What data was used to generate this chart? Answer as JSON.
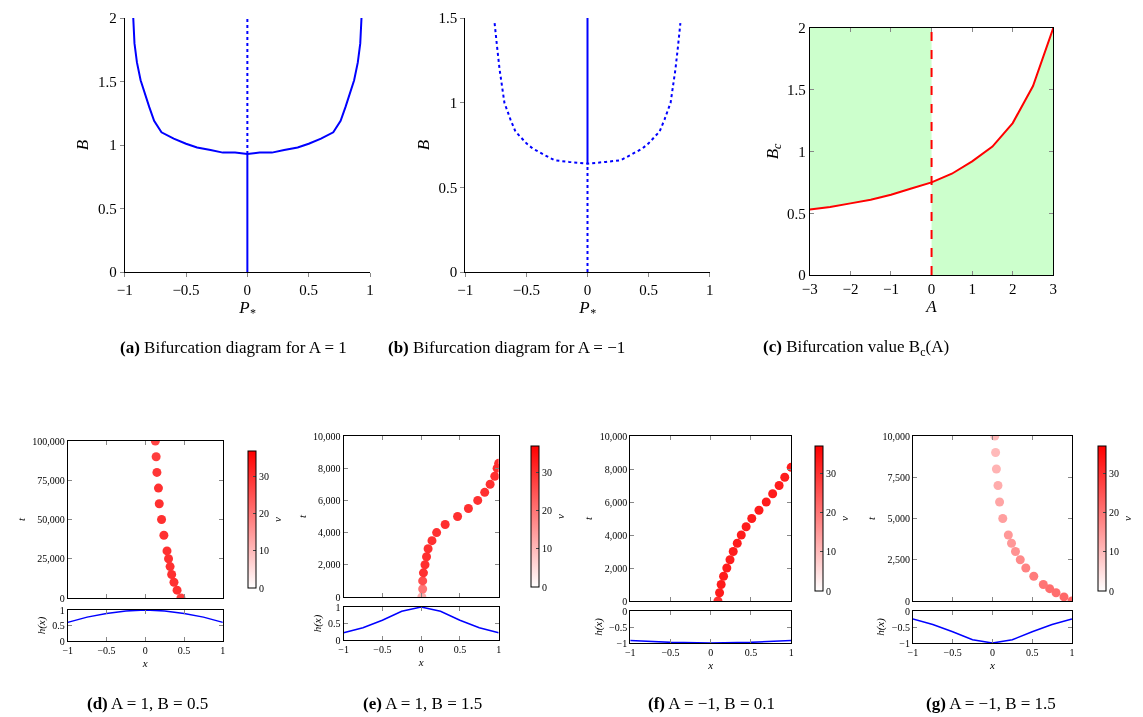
{
  "chart_data": [
    {
      "type": "line",
      "xlabel": "P$_{*}$",
      "ylabel": "B",
      "xlim": [
        -1,
        1
      ],
      "ylim": [
        0,
        2
      ],
      "xticks": [
        {
          "value": -1,
          "label": "−1"
        },
        {
          "value": -0.5,
          "label": "−0.5"
        },
        0,
        0.5,
        1
      ],
      "yticks": [
        0,
        0.5,
        1,
        1.5,
        2
      ],
      "annotations": [
        "(a) Bifurcation diagram for A = 1"
      ],
      "series": [
        {
          "color": "#0000ff",
          "line_style": "solid",
          "x": [
            -0.93,
            -0.92,
            -0.9,
            -0.87,
            -0.8,
            -0.76,
            -0.7,
            -0.6,
            -0.5,
            -0.41,
            -0.3,
            -0.2,
            -0.1,
            0,
            0.1,
            0.2,
            0.3,
            0.41,
            0.5,
            0.6,
            0.7,
            0.76,
            0.8,
            0.87,
            0.9,
            0.92,
            0.93
          ],
          "values": [
            2,
            1.8,
            1.65,
            1.51,
            1.3,
            1.19,
            1.1,
            1.05,
            1.01,
            0.98,
            0.96,
            0.94,
            0.94,
            0.93,
            0.94,
            0.94,
            0.96,
            0.98,
            1.01,
            1.05,
            1.1,
            1.19,
            1.3,
            1.51,
            1.65,
            1.8,
            2
          ]
        },
        {
          "color": "#0000ff",
          "line_style": "dotted",
          "x": [
            0,
            0
          ],
          "values": [
            0.93,
            2
          ]
        },
        {
          "color": "#0000ff",
          "line_style": "solid",
          "x": [
            0,
            0
          ],
          "values": [
            0,
            0.93
          ]
        }
      ]
    },
    {
      "type": "line",
      "xlabel": "P$_{*}$",
      "ylabel": "B",
      "xlim": [
        -1,
        1
      ],
      "ylim": [
        0,
        1.5
      ],
      "xticks": [
        {
          "value": -1,
          "label": "−1"
        },
        {
          "value": -0.5,
          "label": "−0.5"
        },
        0,
        0.5,
        1
      ],
      "yticks": [
        0,
        0.5,
        1,
        1.5
      ],
      "annotations": [
        "(b) Bifurcation diagram for A = −1"
      ],
      "series": [
        {
          "color": "#0000ff",
          "line_style": "dotted",
          "x": [
            -0.76,
            -0.74,
            -0.72,
            -0.68,
            -0.63,
            -0.59,
            -0.5,
            -0.45,
            -0.35,
            -0.27,
            -0.15,
            0,
            0.15,
            0.27,
            0.35,
            0.45,
            0.5,
            0.59,
            0.63,
            0.68,
            0.72,
            0.74,
            0.76
          ],
          "values": [
            1.47,
            1.33,
            1.2,
            1.0,
            0.9,
            0.83,
            0.76,
            0.73,
            0.69,
            0.66,
            0.65,
            0.64,
            0.65,
            0.66,
            0.69,
            0.73,
            0.76,
            0.83,
            0.9,
            1.0,
            1.2,
            1.33,
            1.47
          ]
        },
        {
          "color": "#0000ff",
          "line_style": "solid",
          "x": [
            0,
            0
          ],
          "values": [
            0.64,
            1.5
          ]
        },
        {
          "color": "#0000ff",
          "line_style": "dotted",
          "x": [
            0,
            0
          ],
          "values": [
            0,
            0.64
          ]
        }
      ]
    },
    {
      "type": "line",
      "xlabel": "A",
      "ylabel": "B$_{c}$",
      "xlim": [
        -3,
        3
      ],
      "ylim": [
        0,
        2
      ],
      "xticks": [
        {
          "value": -3,
          "label": "−3"
        },
        {
          "value": -2,
          "label": "−2"
        },
        {
          "value": -1,
          "label": "−1"
        },
        0,
        1,
        2,
        3
      ],
      "yticks": [
        0,
        0.5,
        1,
        1.5,
        2
      ],
      "annotations": [
        "(c) Bifurcation value B$_{c}$(A)"
      ],
      "ref_lines": [
        {
          "axis": "x",
          "value": 0,
          "color": "#ff0000",
          "line_style": "dashed"
        }
      ],
      "series": [
        {
          "type": "line",
          "color": "#ff0000",
          "line_style": "solid",
          "x": [
            -3,
            -2.5,
            -2,
            -1.5,
            -1,
            -0.5,
            0,
            0,
            0.5,
            1,
            1.5,
            2,
            2.5,
            3
          ],
          "values": [
            0.53,
            0.55,
            0.58,
            0.61,
            0.65,
            0.7,
            0.75,
            0.75,
            0.82,
            0.92,
            1.04,
            1.23,
            1.53,
            2
          ],
          "lower": [
            0.53,
            0.55,
            0.58,
            0.61,
            0.65,
            0.7,
            0.75,
            0,
            0,
            0,
            0,
            0,
            0,
            0
          ],
          "upper": [
            2,
            2,
            2,
            2,
            2,
            2,
            2,
            0.75,
            0.82,
            0.92,
            1.04,
            1.23,
            1.53,
            2
          ]
        }
      ]
    },
    {
      "type": "scatter",
      "marker": "circle",
      "ylabel": "t",
      "clabel": "v",
      "clim": [
        0,
        37
      ],
      "cticks": [
        0,
        10,
        20,
        30
      ],
      "tick_labels": "y",
      "xlim": [
        -1,
        1
      ],
      "ylim": [
        0,
        100000
      ],
      "xticks": [
        -1,
        -0.5,
        0,
        0.5,
        1
      ],
      "yticks": [
        0,
        {
          "value": 25000,
          "label": "25,000"
        },
        {
          "value": 50000,
          "label": "50,000"
        },
        {
          "value": 75000,
          "label": "75,000"
        },
        {
          "value": 100000,
          "label": "100,000"
        }
      ],
      "series": [
        {
          "x": [
            0.46,
            0.41,
            0.37,
            0.34,
            0.32,
            0.3,
            0.28,
            0.24,
            0.21,
            0.18,
            0.17,
            0.15,
            0.14,
            0.13
          ],
          "values": [
            0,
            5000,
            10000,
            15000,
            20000,
            25000,
            30000,
            40000,
            50000,
            60000,
            70000,
            80000,
            90000,
            100000
          ],
          "cvalues": [
            28,
            30,
            30,
            30,
            30,
            30,
            30,
            30,
            30,
            30,
            30,
            29,
            28,
            27
          ]
        }
      ]
    },
    {
      "type": "line",
      "xlabel": "x",
      "ylabel": "h(x)",
      "xlim": [
        -1,
        1
      ],
      "ylim": [
        0,
        1
      ],
      "xticks": [
        {
          "value": -1,
          "label": "−1"
        },
        {
          "value": -0.5,
          "label": "−0.5"
        },
        0,
        0.5,
        1
      ],
      "yticks": [
        0,
        0.5,
        1
      ],
      "annotations": [
        "(d) A = 1, B = 0.5"
      ],
      "series": [
        {
          "color": "#0000ff",
          "line_style": "solid",
          "x": [
            -1,
            -0.75,
            -0.5,
            -0.25,
            0,
            0.25,
            0.5,
            0.75,
            1
          ],
          "values": [
            0.6,
            0.77,
            0.89,
            0.97,
            1,
            0.97,
            0.89,
            0.77,
            0.6
          ]
        }
      ]
    },
    {
      "type": "scatter",
      "marker": "circle",
      "ylabel": "t",
      "clabel": "v",
      "clim": [
        0,
        37
      ],
      "cticks": [
        0,
        10,
        20,
        30
      ],
      "tick_labels": "y",
      "xlim": [
        -1,
        1
      ],
      "ylim": [
        0,
        10000
      ],
      "xticks": [
        -1,
        -0.5,
        0,
        0.5,
        1
      ],
      "yticks": [
        0,
        {
          "value": 2000,
          "label": "2,000"
        },
        {
          "value": 4000,
          "label": "4,000"
        },
        {
          "value": 6000,
          "label": "6,000"
        },
        {
          "value": 8000,
          "label": "8,000"
        },
        {
          "value": 10000,
          "label": "10,000"
        }
      ],
      "series": [
        {
          "x": [
            0.01,
            0.02,
            0.02,
            0.03,
            0.05,
            0.07,
            0.09,
            0.14,
            0.2,
            0.31,
            0.47,
            0.61,
            0.73,
            0.82,
            0.89,
            0.95,
            0.98,
            1.0
          ],
          "values": [
            0,
            500,
            1000,
            1500,
            2000,
            2500,
            3000,
            3500,
            4000,
            4500,
            5000,
            5500,
            6000,
            6500,
            7000,
            7500,
            8000,
            8300
          ],
          "cvalues": [
            12,
            20,
            26,
            30,
            30,
            30,
            30,
            30,
            30,
            30,
            30,
            30,
            30,
            30,
            30,
            30,
            30,
            30
          ]
        }
      ]
    },
    {
      "type": "line",
      "xlabel": "x",
      "ylabel": "h(x)",
      "xlim": [
        -1,
        1
      ],
      "ylim": [
        0,
        1
      ],
      "xticks": [
        {
          "value": -1,
          "label": "−1"
        },
        {
          "value": -0.5,
          "label": "−0.5"
        },
        0,
        0.5,
        1
      ],
      "yticks": [
        0,
        0.5,
        1
      ],
      "annotations": [
        "(e) A = 1, B = 1.5"
      ],
      "series": [
        {
          "color": "#0000ff",
          "line_style": "solid",
          "x": [
            -1,
            -0.75,
            -0.5,
            -0.25,
            0,
            0.25,
            0.5,
            0.75,
            1
          ],
          "values": [
            0.22,
            0.37,
            0.6,
            0.87,
            1,
            0.87,
            0.6,
            0.37,
            0.22
          ]
        }
      ]
    },
    {
      "type": "scatter",
      "marker": "circle",
      "ylabel": "t",
      "clabel": "v",
      "clim": [
        0,
        37
      ],
      "cticks": [
        0,
        10,
        20,
        30
      ],
      "tick_labels": "y",
      "xlim": [
        -1,
        1
      ],
      "ylim": [
        0,
        10000
      ],
      "xticks": [
        -1,
        -0.5,
        0,
        0.5,
        1
      ],
      "yticks": [
        0,
        {
          "value": 2000,
          "label": "2,000"
        },
        {
          "value": 4000,
          "label": "4,000"
        },
        {
          "value": 6000,
          "label": "6,000"
        },
        {
          "value": 8000,
          "label": "8,000"
        },
        {
          "value": 10000,
          "label": "10,000"
        }
      ],
      "series": [
        {
          "x": [
            0.09,
            0.11,
            0.13,
            0.16,
            0.2,
            0.24,
            0.28,
            0.33,
            0.38,
            0.44,
            0.51,
            0.6,
            0.69,
            0.77,
            0.85,
            0.92,
            1.0
          ],
          "values": [
            0,
            500,
            1000,
            1500,
            2000,
            2500,
            3000,
            3500,
            4000,
            4500,
            5000,
            5500,
            6000,
            6500,
            7000,
            7500,
            8100
          ],
          "cvalues": [
            30,
            33,
            33,
            33,
            33,
            33,
            33,
            33,
            33,
            33,
            33,
            33,
            33,
            33,
            33,
            33,
            33
          ]
        }
      ]
    },
    {
      "type": "line",
      "xlabel": "x",
      "ylabel": "h(x)",
      "xlim": [
        -1,
        1
      ],
      "ylim": [
        -1,
        0
      ],
      "xticks": [
        {
          "value": -1,
          "label": "−1"
        },
        {
          "value": -0.5,
          "label": "−0.5"
        },
        0,
        0.5,
        1
      ],
      "yticks": [
        {
          "value": -1,
          "label": "−1"
        },
        {
          "value": -0.5,
          "label": "−0.5"
        },
        0
      ],
      "annotations": [
        "(f) A = −1, B = 0.1"
      ],
      "series": [
        {
          "color": "#0000ff",
          "line_style": "solid",
          "x": [
            -1,
            -0.5,
            0,
            0.5,
            1
          ],
          "values": [
            -0.92,
            -0.98,
            -1,
            -0.98,
            -0.92
          ]
        }
      ]
    },
    {
      "type": "scatter",
      "marker": "circle",
      "ylabel": "t",
      "clabel": "v",
      "clim": [
        0,
        37
      ],
      "cticks": [
        0,
        10,
        20,
        30
      ],
      "tick_labels": "y",
      "xlim": [
        -1,
        1
      ],
      "ylim": [
        0,
        10000
      ],
      "xticks": [
        -1,
        -0.5,
        0,
        0.5,
        1
      ],
      "yticks": [
        0,
        {
          "value": 2500,
          "label": "2,500"
        },
        {
          "value": 5000,
          "label": "5,000"
        },
        {
          "value": 7500,
          "label": "7,500"
        },
        {
          "value": 10000,
          "label": "10,000"
        }
      ],
      "series": [
        {
          "x": [
            1.0,
            0.9,
            0.8,
            0.72,
            0.64,
            0.52,
            0.42,
            0.35,
            0.29,
            0.24,
            0.2,
            0.13,
            0.09,
            0.07,
            0.05,
            0.04,
            0.03
          ],
          "values": [
            0,
            250,
            500,
            750,
            1000,
            1500,
            2000,
            2500,
            3000,
            3500,
            4000,
            5000,
            6000,
            7000,
            8000,
            9000,
            10000
          ],
          "cvalues": [
            22,
            22,
            21,
            21,
            20,
            19,
            18,
            17,
            16,
            15,
            15,
            14,
            13,
            12,
            11,
            10,
            10
          ]
        }
      ]
    },
    {
      "type": "line",
      "xlabel": "x",
      "ylabel": "h(x)",
      "xlim": [
        -1,
        1
      ],
      "ylim": [
        -1,
        0
      ],
      "xticks": [
        {
          "value": -1,
          "label": "−1"
        },
        {
          "value": -0.5,
          "label": "−0.5"
        },
        0,
        0.5,
        1
      ],
      "yticks": [
        {
          "value": -1,
          "label": "−1"
        },
        {
          "value": -0.5,
          "label": "−0.5"
        },
        0
      ],
      "annotations": [
        "(g) A = −1, B = 1.5"
      ],
      "series": [
        {
          "color": "#0000ff",
          "line_style": "solid",
          "x": [
            -1,
            -0.75,
            -0.5,
            -0.25,
            0,
            0.25,
            0.5,
            0.75,
            1
          ],
          "values": [
            -0.25,
            -0.42,
            -0.65,
            -0.9,
            -1,
            -0.9,
            -0.65,
            -0.42,
            -0.25
          ]
        }
      ]
    }
  ]
}
